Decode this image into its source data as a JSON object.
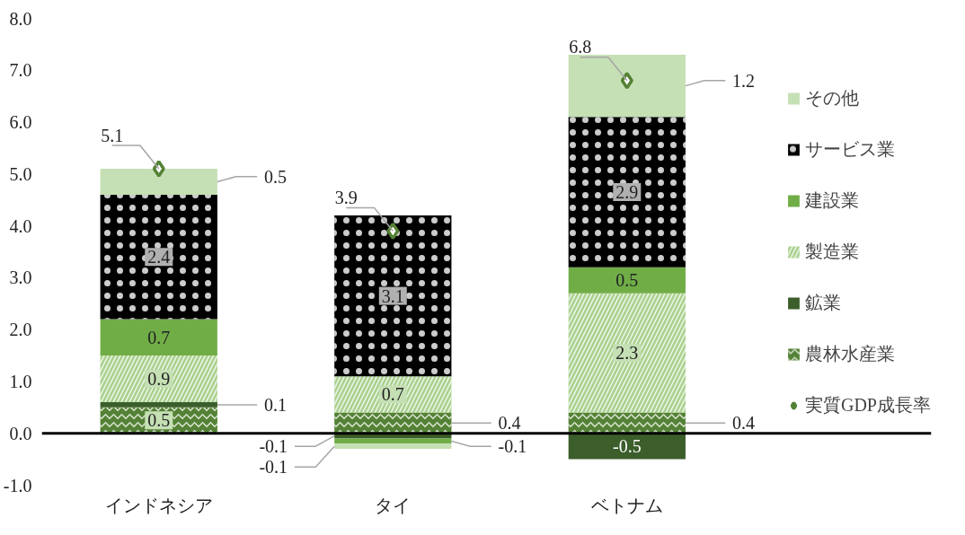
{
  "chart_data": {
    "type": "bar",
    "stacked": true,
    "categories": [
      "インドネシア",
      "タイ",
      "ベトナム"
    ],
    "series": [
      {
        "name": "農林水産業",
        "color": "#548235",
        "values": [
          0.5,
          0.4,
          0.4
        ]
      },
      {
        "name": "鉱業",
        "color": "#3b5e2b",
        "values": [
          0.1,
          -0.1,
          -0.5
        ]
      },
      {
        "name": "製造業",
        "color": "#a9d18e",
        "values": [
          0.9,
          0.7,
          2.3
        ]
      },
      {
        "name": "建設業",
        "color": "#70ad47",
        "values": [
          0.7,
          -0.1,
          0.5
        ]
      },
      {
        "name": "サービス業",
        "color": "#000000",
        "values": [
          2.4,
          3.1,
          2.9
        ]
      },
      {
        "name": "その他",
        "color": "#c5e0b4",
        "values": [
          0.5,
          -0.1,
          1.2
        ]
      },
      {
        "name": "実質GDP成長率",
        "type": "scatter",
        "marker": "diamond",
        "color": "#548235",
        "values": [
          5.1,
          3.9,
          6.8
        ]
      }
    ],
    "ylim": [
      -1.0,
      8.0
    ],
    "yticks": [
      {
        "value": -1,
        "label": "-1.0"
      },
      {
        "value": 0,
        "label": "0.0"
      },
      {
        "value": 1,
        "label": "1.0"
      },
      {
        "value": 2,
        "label": "2.0"
      },
      {
        "value": 3,
        "label": "3.0"
      },
      {
        "value": 4,
        "label": "4.0"
      },
      {
        "value": 5,
        "label": "5.0"
      },
      {
        "value": 6,
        "label": "6.0"
      },
      {
        "value": 7,
        "label": "7.0"
      },
      {
        "value": 8,
        "label": "8.0"
      }
    ],
    "ref_lines": [
      {
        "axis": "y",
        "value": 0,
        "color": "#000000"
      }
    ],
    "data_labels": true,
    "grid": false,
    "legend": "right"
  }
}
